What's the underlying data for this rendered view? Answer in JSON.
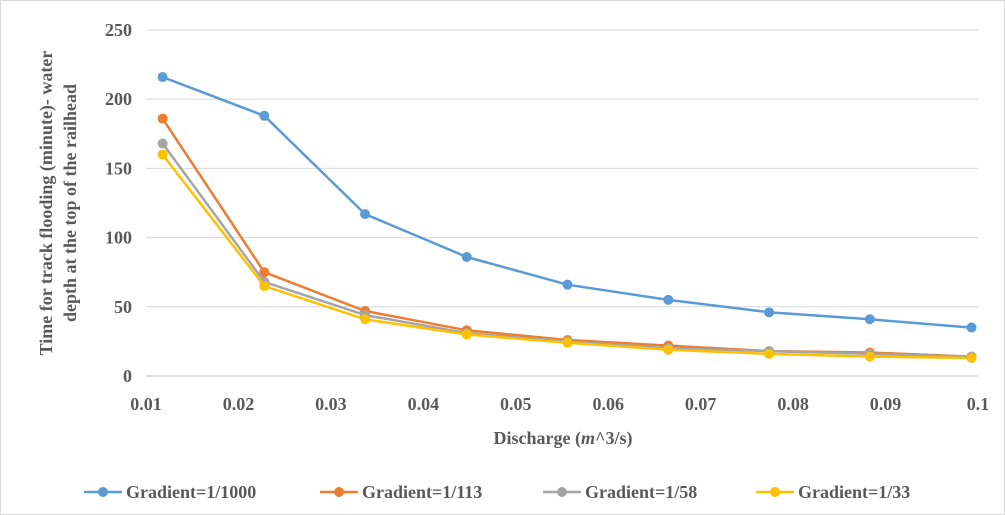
{
  "chart_data": {
    "type": "line",
    "title": "",
    "xlabel_main": "Discharge (",
    "xlabel_italic": "m",
    "xlabel_rest": "^3/s)",
    "ylabel_line1": "Time for track flooding (minute)- water",
    "ylabel_line2": "depth at the top of the railhead",
    "xlim": [
      0.01,
      0.1
    ],
    "ylim": [
      0,
      250
    ],
    "x_ticks": [
      "0.01",
      "0.02",
      "0.03",
      "0.04",
      "0.05",
      "0.06",
      "0.07",
      "0.08",
      "0.09",
      "0.1"
    ],
    "y_ticks": [
      "0",
      "50",
      "100",
      "150",
      "200",
      "250"
    ],
    "grid": "horizontal",
    "legend_position": "bottom",
    "x": [
      0.0118,
      0.0228,
      0.0337,
      0.0447,
      0.0556,
      0.0665,
      0.0774,
      0.0883,
      0.0993
    ],
    "series": [
      {
        "name": "Gradient=1/1000",
        "color": "#5b9bd5",
        "values": [
          216,
          188,
          117,
          86,
          66,
          55,
          46,
          41,
          35
        ]
      },
      {
        "name": "Gradient=1/113",
        "color": "#ed7d31",
        "values": [
          186,
          75,
          47,
          33,
          26,
          22,
          18,
          17,
          14
        ]
      },
      {
        "name": "Gradient=1/58",
        "color": "#a5a5a5",
        "values": [
          168,
          68,
          44,
          31,
          25,
          20,
          18,
          16,
          14
        ]
      },
      {
        "name": "Gradient=1/33",
        "color": "#ffc000",
        "values": [
          160,
          65,
          41,
          30,
          24,
          19,
          16,
          14,
          13
        ]
      }
    ]
  }
}
